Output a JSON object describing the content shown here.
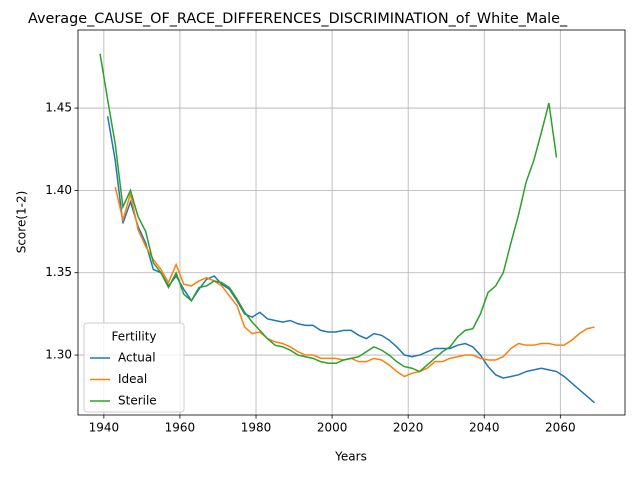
{
  "chart_data": {
    "type": "line",
    "title": "Average_CAUSE_OF_RACE_DIFFERENCES_DISCRIMINATION_of_White_Male_",
    "x_label": "Years",
    "y_label": "Score(1-2)",
    "legend_title": "Fertility",
    "legend": "lower left",
    "grid": true,
    "xlim": [
      1933.2,
      2077
    ],
    "ylim": [
      1.2636,
      1.4974
    ],
    "xticks": [
      1940,
      1960,
      1980,
      2000,
      2020,
      2040,
      2060
    ],
    "yticks": [
      {
        "value": 1.3,
        "label": "1.30"
      },
      {
        "value": 1.35,
        "label": "1.35"
      },
      {
        "value": 1.4,
        "label": "1.40"
      },
      {
        "value": 1.45,
        "label": "1.45"
      }
    ],
    "x": [
      1939,
      1941,
      1943,
      1945,
      1947,
      1949,
      1951,
      1953,
      1955,
      1957,
      1959,
      1961,
      1963,
      1965,
      1967,
      1969,
      1971,
      1973,
      1975,
      1977,
      1979,
      1981,
      1983,
      1985,
      1987,
      1989,
      1991,
      1993,
      1995,
      1997,
      1999,
      2001,
      2003,
      2005,
      2007,
      2009,
      2011,
      2013,
      2015,
      2017,
      2019,
      2021,
      2023,
      2025,
      2027,
      2029,
      2031,
      2033,
      2035,
      2037,
      2039,
      2041,
      2043,
      2045,
      2047,
      2049,
      2051,
      2053,
      2055,
      2057,
      2059,
      2061,
      2063,
      2065,
      2067,
      2069
    ],
    "series": [
      {
        "name": "Actual",
        "color": "#1f77b4",
        "values": [
          null,
          1.445,
          1.418,
          1.38,
          1.393,
          1.378,
          1.368,
          1.352,
          1.35,
          1.342,
          1.348,
          1.34,
          1.333,
          1.34,
          1.346,
          1.348,
          1.343,
          1.34,
          1.333,
          1.325,
          1.323,
          1.326,
          1.322,
          1.321,
          1.32,
          1.321,
          1.319,
          1.318,
          1.318,
          1.315,
          1.314,
          1.314,
          1.315,
          1.315,
          1.312,
          1.31,
          1.313,
          1.312,
          1.309,
          1.305,
          1.3,
          1.299,
          1.3,
          1.302,
          1.304,
          1.304,
          1.304,
          1.306,
          1.307,
          1.305,
          1.3,
          1.293,
          1.288,
          1.286,
          1.287,
          1.288,
          1.29,
          1.291,
          1.292,
          1.291,
          1.29,
          1.287,
          1.283,
          1.279,
          1.275,
          1.271
        ]
      },
      {
        "name": "Ideal",
        "color": "#ff7f0e",
        "values": [
          null,
          null,
          1.402,
          1.382,
          1.398,
          1.376,
          1.366,
          1.358,
          1.352,
          1.344,
          1.355,
          1.343,
          1.342,
          1.345,
          1.347,
          1.345,
          1.342,
          1.336,
          1.33,
          1.317,
          1.313,
          1.314,
          1.31,
          1.308,
          1.307,
          1.305,
          1.302,
          1.3,
          1.3,
          1.298,
          1.298,
          1.298,
          1.297,
          1.298,
          1.296,
          1.296,
          1.298,
          1.297,
          1.294,
          1.29,
          1.287,
          1.289,
          1.29,
          1.292,
          1.296,
          1.296,
          1.298,
          1.299,
          1.3,
          1.3,
          1.298,
          1.297,
          1.297,
          1.299,
          1.304,
          1.307,
          1.306,
          1.306,
          1.307,
          1.307,
          1.306,
          1.306,
          1.309,
          1.313,
          1.316,
          1.317
        ]
      },
      {
        "name": "Sterile",
        "color": "#2ca02c",
        "values": [
          1.483,
          1.455,
          1.428,
          1.39,
          1.4,
          1.384,
          1.375,
          1.356,
          1.35,
          1.341,
          1.35,
          1.337,
          1.333,
          1.341,
          1.342,
          1.345,
          1.344,
          1.341,
          1.334,
          1.326,
          1.32,
          1.315,
          1.31,
          1.306,
          1.305,
          1.303,
          1.3,
          1.299,
          1.298,
          1.296,
          1.295,
          1.295,
          1.297,
          1.298,
          1.299,
          1.302,
          1.305,
          1.303,
          1.3,
          1.296,
          1.293,
          1.292,
          1.29,
          1.294,
          1.298,
          1.302,
          1.305,
          1.311,
          1.315,
          1.316,
          1.325,
          1.338,
          1.342,
          1.35,
          1.368,
          1.385,
          1.405,
          1.418,
          1.435,
          1.453,
          1.42,
          null,
          null,
          null,
          null,
          null
        ]
      }
    ]
  }
}
